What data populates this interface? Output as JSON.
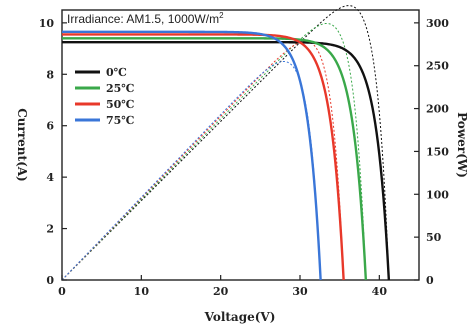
{
  "chart_data": {
    "type": "line",
    "annotation": {
      "main": "Irradiance: AM1.5, 1000W/m",
      "sup": "2"
    },
    "xlabel": "Voltage(V)",
    "ylabel_left": "Current(A)",
    "ylabel_right": "Power(W)",
    "xlim": [
      0,
      45
    ],
    "ylim_left": [
      0,
      10.5
    ],
    "ylim_right": [
      0,
      315
    ],
    "xticks": [
      "0",
      "10",
      "20",
      "30",
      "40"
    ],
    "yticks_left": [
      "0",
      "2",
      "4",
      "6",
      "8",
      "10"
    ],
    "yticks_right": [
      "0",
      "50",
      "100",
      "150",
      "200",
      "250",
      "300"
    ],
    "legend_placement": "upper-left",
    "series": [
      {
        "name": "0℃",
        "color": "#111111",
        "isc": 9.25,
        "voc": 41.2,
        "n": 1.6
      },
      {
        "name": "25℃",
        "color": "#3aa84a",
        "isc": 9.4,
        "voc": 38.3,
        "n": 1.6
      },
      {
        "name": "50℃",
        "color": "#e8382a",
        "isc": 9.55,
        "voc": 35.5,
        "n": 1.6
      },
      {
        "name": "75℃",
        "color": "#3a76d8",
        "isc": 9.65,
        "voc": 32.6,
        "n": 1.6
      }
    ]
  }
}
